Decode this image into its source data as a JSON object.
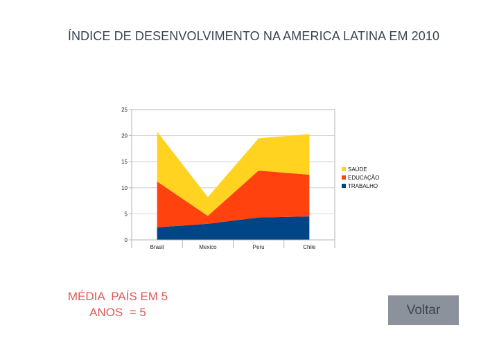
{
  "page": {
    "title": "ÍNDICE DE DESENVOLVIMENTO NA AMERICA LATINA EM 2010",
    "note_line1": "MÉDIA  PAÍS EM 5",
    "note_line2": "ANOS  = 5",
    "back_label": "Voltar"
  },
  "chart_data": {
    "type": "area",
    "stacked": true,
    "categories": [
      "Brasil",
      "Mexico",
      "Peru",
      "Chile"
    ],
    "series": [
      {
        "name": "TRABALHO",
        "values": [
          2.4,
          3.1,
          4.3,
          4.5
        ],
        "color": "#004586"
      },
      {
        "name": "EDUCAÇÃO",
        "values": [
          8.8,
          1.5,
          9.0,
          8.0
        ],
        "color": "#ff420e"
      },
      {
        "name": "SAÚDE",
        "values": [
          9.6,
          3.6,
          6.2,
          7.8
        ],
        "color": "#ffd320"
      }
    ],
    "ylim": [
      0,
      25
    ],
    "yticks": [
      0,
      5,
      10,
      15,
      20,
      25
    ],
    "grid": true,
    "legend_position": "right",
    "legend_order": [
      "SAÚDE",
      "EDUCAÇÃO",
      "TRABALHO"
    ]
  }
}
